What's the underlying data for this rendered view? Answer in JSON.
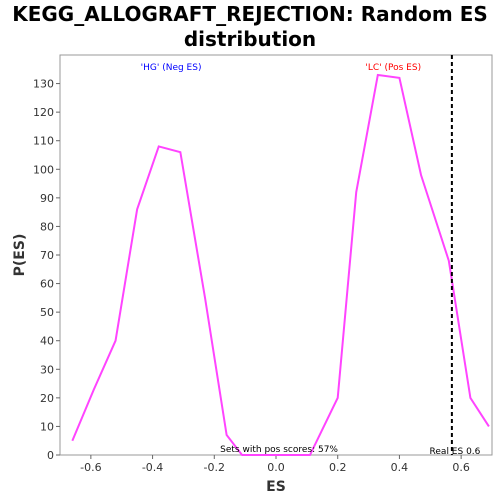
{
  "chart_data": {
    "type": "line",
    "title_line1": "KEGG_ALLOGRAFT_REJECTION: Random ES",
    "title_line2": "distribution",
    "xlabel": "ES",
    "ylabel": "P(ES)",
    "xlim": [
      -0.7,
      0.7
    ],
    "ylim": [
      0,
      140
    ],
    "xticks": [
      -0.6,
      -0.4,
      -0.2,
      0.0,
      0.2,
      0.4,
      0.6
    ],
    "xtick_labels": [
      "-0.6",
      "-0.4",
      "-0.2",
      "0.0",
      "0.2",
      "0.4",
      "0.6"
    ],
    "yticks": [
      0,
      10,
      20,
      30,
      40,
      50,
      60,
      70,
      80,
      90,
      100,
      110,
      120,
      130
    ],
    "ytick_labels": [
      "0",
      "10",
      "20",
      "30",
      "40",
      "50",
      "60",
      "70",
      "80",
      "90",
      "100",
      "110",
      "120",
      "130"
    ],
    "grid": false,
    "series": [
      {
        "color": "#ff44ff",
        "x": [
          -0.66,
          -0.59,
          -0.52,
          -0.45,
          -0.38,
          -0.31,
          -0.23,
          -0.16,
          -0.11,
          0.11,
          0.2,
          0.26,
          0.33,
          0.4,
          0.47,
          0.56,
          0.63,
          0.69
        ],
        "y": [
          5,
          23,
          40,
          86,
          108,
          106,
          55,
          7,
          0,
          0,
          20,
          92,
          133,
          132,
          98,
          68,
          20,
          10
        ]
      }
    ],
    "real_es": 0.57,
    "annotations": {
      "neg_label": "'HG' (Neg ES)",
      "pos_label": "'LC' (Pos ES)",
      "pos_scores": "Sets with pos scores: 57%",
      "real_es_label": "Real ES 0.6"
    },
    "colors": {
      "neg_label": "#0000ff",
      "pos_label": "#ff0000",
      "real_es_line": "#000000"
    }
  }
}
